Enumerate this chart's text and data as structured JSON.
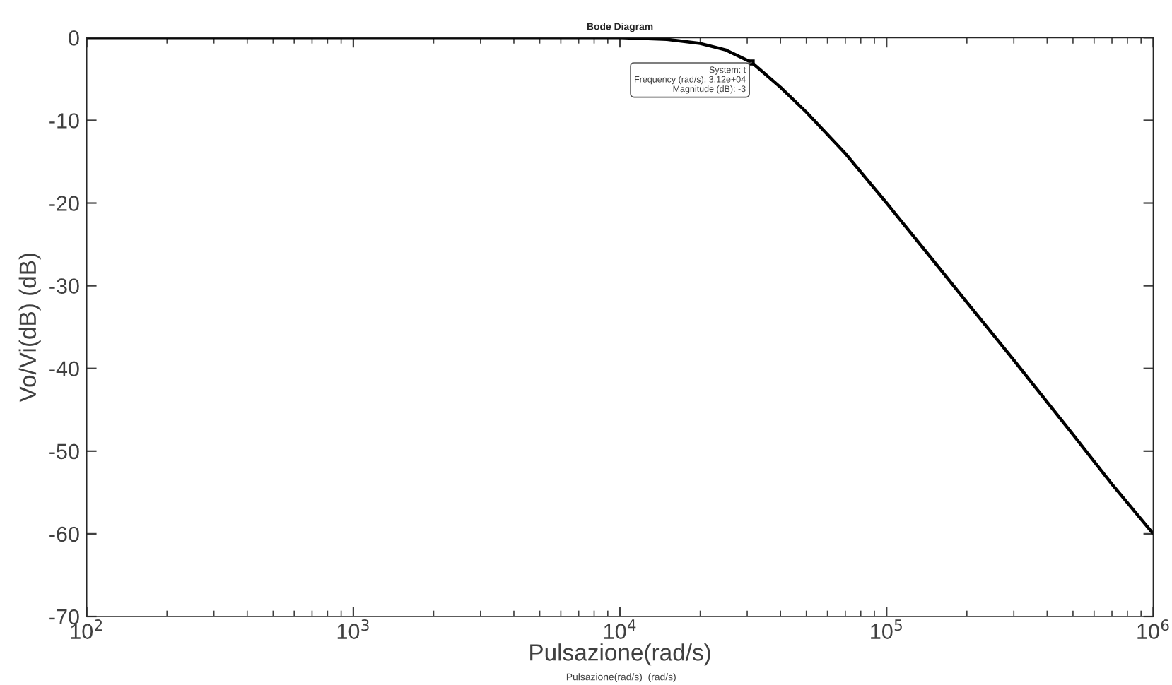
{
  "chart_data": {
    "type": "line",
    "title": "Bode Diagram",
    "xlabel": "Pulsazione(rad/s)",
    "ylabel": "Vo/Vi(dB) (dB)",
    "log": "x",
    "x": [
      100,
      1000,
      3000,
      5000,
      10000,
      15000,
      20000,
      25000,
      31200,
      40000,
      50000,
      70000,
      100000,
      150000,
      200000,
      300000,
      500000,
      700000,
      1000000
    ],
    "series": [
      {
        "color": "#000000",
        "values": [
          0,
          0,
          0,
          0,
          0,
          -0.2,
          -0.7,
          -1.5,
          -3,
          -6,
          -9,
          -14,
          -20,
          -27,
          -32,
          -39,
          -48,
          -54,
          -60
        ]
      }
    ],
    "xlim": [
      100,
      1000000
    ],
    "ylim": [
      -70,
      0
    ],
    "xticks": [
      {
        "value": 100,
        "label": "10$^{2}$"
      },
      {
        "value": 1000,
        "label": "10$^{3}$"
      },
      {
        "value": 10000,
        "label": "10$^{4}$"
      },
      {
        "value": 100000,
        "label": "10$^{5}$"
      },
      {
        "value": 1000000,
        "label": "10$^{6}$"
      }
    ],
    "yticks": [
      -70,
      -60,
      -50,
      -40,
      -30,
      -20,
      -10,
      0
    ],
    "grid": false,
    "legend": false,
    "marker": "none",
    "line_style": "solid",
    "annotations": [
      {
        "text": "System: t\nFrequency (rad/s): 3.12e+04\nMagnitude (dB): -3",
        "x": 31200,
        "y": -3
      },
      "Pulsazione(rad/s)  (rad/s)"
    ]
  }
}
